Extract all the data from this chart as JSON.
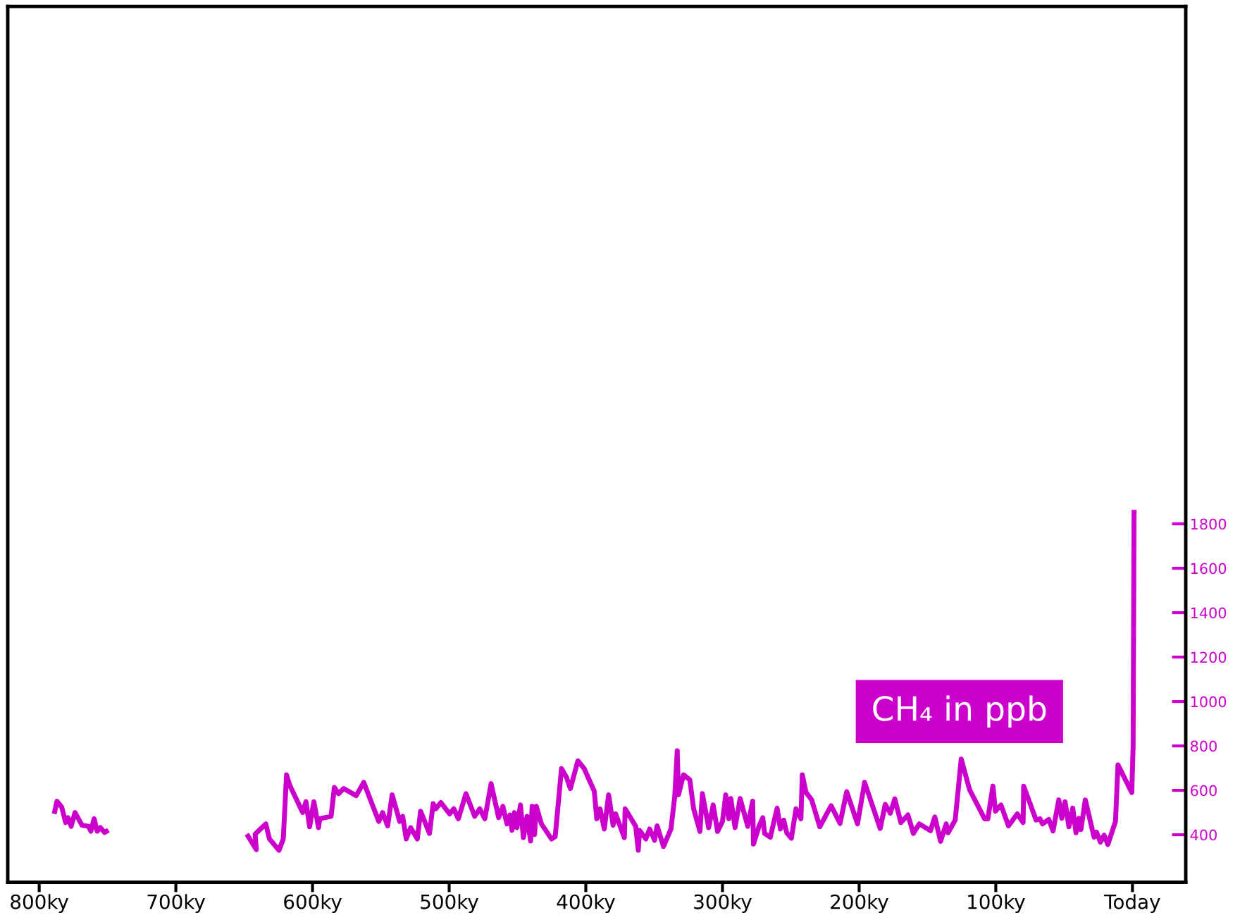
{
  "chart_data": {
    "type": "line",
    "x": [
      789,
      787,
      783.5,
      780.6,
      778.9,
      776.6,
      773.8,
      768.7,
      764,
      762.2,
      759.8,
      757.6,
      755.2,
      752.1,
      749.3,
      700,
      648.1,
      641.1,
      642.0,
      634.2,
      631.5,
      624.5,
      621.4,
      619.0,
      616.8,
      607.2,
      604.8,
      602.1,
      599.0,
      595.6,
      594.7,
      586.4,
      584.0,
      580.9,
      577.2,
      568.0,
      562.5,
      551.5,
      548.7,
      545.0,
      541.7,
      536.2,
      534.0,
      531.4,
      528.2,
      523.3,
      520.9,
      514.4,
      511.7,
      509.8,
      506.1,
      499.7,
      496.6,
      493.3,
      487.7,
      481.3,
      477.6,
      473.9,
      469.3,
      463.8,
      460.7,
      457.7,
      455.5,
      454.0,
      452.2,
      450.4,
      447.8,
      445.7,
      443.0,
      440.4,
      439.3,
      437.5,
      436.2,
      432.5,
      425.1,
      422.4,
      417.8,
      414.1,
      411.3,
      405.8,
      401.2,
      393.8,
      392.0,
      389.6,
      386.5,
      383.3,
      380.0,
      378.2,
      371.8,
      371.2,
      363.5,
      361.6,
      360.7,
      356.1,
      353.3,
      349.7,
      347.8,
      343.2,
      337.7,
      334.9,
      333.1,
      332.2,
      328.5,
      323.9,
      321.1,
      316.5,
      314.7,
      310.1,
      306.8,
      303.6,
      300.0,
      297.6,
      295.4,
      293.9,
      290.8,
      287.1,
      281.5,
      277.9,
      277.3,
      273.3,
      270.5,
      269.2,
      265.0,
      260.0,
      257.6,
      255.2,
      253.0,
      249.6,
      246.2,
      242.6,
      241.6,
      238.9,
      234.7,
      228.8,
      220.5,
      214.0,
      209.1,
      201.2,
      196.0,
      184.6,
      180.9,
      177.2,
      173.9,
      169.5,
      164.3,
      160.3,
      156.0,
      147.8,
      144.6,
      140.4,
      136.3,
      134.9,
      129.7,
      125.3,
      119.2,
      108.2,
      105.8,
      102.1,
      100.3,
      96.2,
      90.7,
      84.3,
      80.0,
      79.6,
      70.5,
      67.7,
      65.8,
      61.2,
      58.1,
      53.9,
      51.7,
      49.3,
      46.5,
      43.7,
      41.3,
      39.1,
      37.7,
      34.5,
      28.1,
      26.3,
      23.5,
      20.7,
      18.0,
      12.4,
      10.6,
      0.5,
      -0.5,
      -1,
      -1.2
    ],
    "series": [
      {
        "color": "#cc00cc",
        "values": [
          494,
          551,
          524,
          455,
          477,
          438,
          500,
          443,
          438,
          416,
          472,
          416,
          432,
          410,
          421,
          null,
          403,
          333,
          403,
          449,
          381,
          330,
          381,
          670,
          625,
          500,
          549,
          436,
          549,
          432,
          472,
          483,
          613,
          585,
          608,
          576,
          636,
          460,
          500,
          440,
          580,
          460,
          483,
          381,
          432,
          381,
          506,
          406,
          540,
          517,
          545,
          494,
          517,
          472,
          585,
          483,
          517,
          472,
          630,
          477,
          528,
          449,
          489,
          420,
          500,
          432,
          534,
          387,
          483,
          372,
          528,
          401,
          528,
          449,
          381,
          392,
          698,
          658,
          608,
          733,
          698,
          596,
          472,
          517,
          426,
          580,
          443,
          494,
          387,
          517,
          438,
          330,
          420,
          381,
          426,
          375,
          440,
          347,
          426,
          574,
          778,
          580,
          670,
          647,
          517,
          415,
          585,
          432,
          534,
          415,
          460,
          580,
          472,
          563,
          432,
          563,
          438,
          551,
          358,
          438,
          477,
          406,
          389,
          520,
          426,
          466,
          409,
          384,
          517,
          472,
          670,
          591,
          557,
          436,
          531,
          451,
          594,
          449,
          636,
          428,
          537,
          497,
          562,
          455,
          489,
          406,
          449,
          418,
          480,
          370,
          449,
          409,
          466,
          741,
          603,
          472,
          472,
          619,
          506,
          534,
          440,
          494,
          455,
          619,
          466,
          472,
          449,
          469,
          417,
          557,
          474,
          549,
          436,
          520,
          409,
          474,
          423,
          557,
          389,
          412,
          367,
          398,
          356,
          460,
          715,
          590,
          800,
          1600,
          1863
        ]
      }
    ],
    "xlim": [
      823,
      -39
    ],
    "xticks": [
      {
        "value": 800,
        "label": "800ky"
      },
      {
        "value": 700,
        "label": "700ky"
      },
      {
        "value": 600,
        "label": "600ky"
      },
      {
        "value": 500,
        "label": "500ky"
      },
      {
        "value": 400,
        "label": "400ky"
      },
      {
        "value": 300,
        "label": "300ky"
      },
      {
        "value": 200,
        "label": "200ky"
      },
      {
        "value": 100,
        "label": "100ky"
      },
      {
        "value": 0,
        "label": "Today"
      }
    ],
    "ylim": [
      186,
      4130
    ],
    "yticks": [
      400,
      600,
      800,
      1000,
      1200,
      1400,
      1600,
      1800
    ],
    "annotations": [
      "CH₄ in ppb"
    ],
    "grid": false,
    "legend": false
  }
}
